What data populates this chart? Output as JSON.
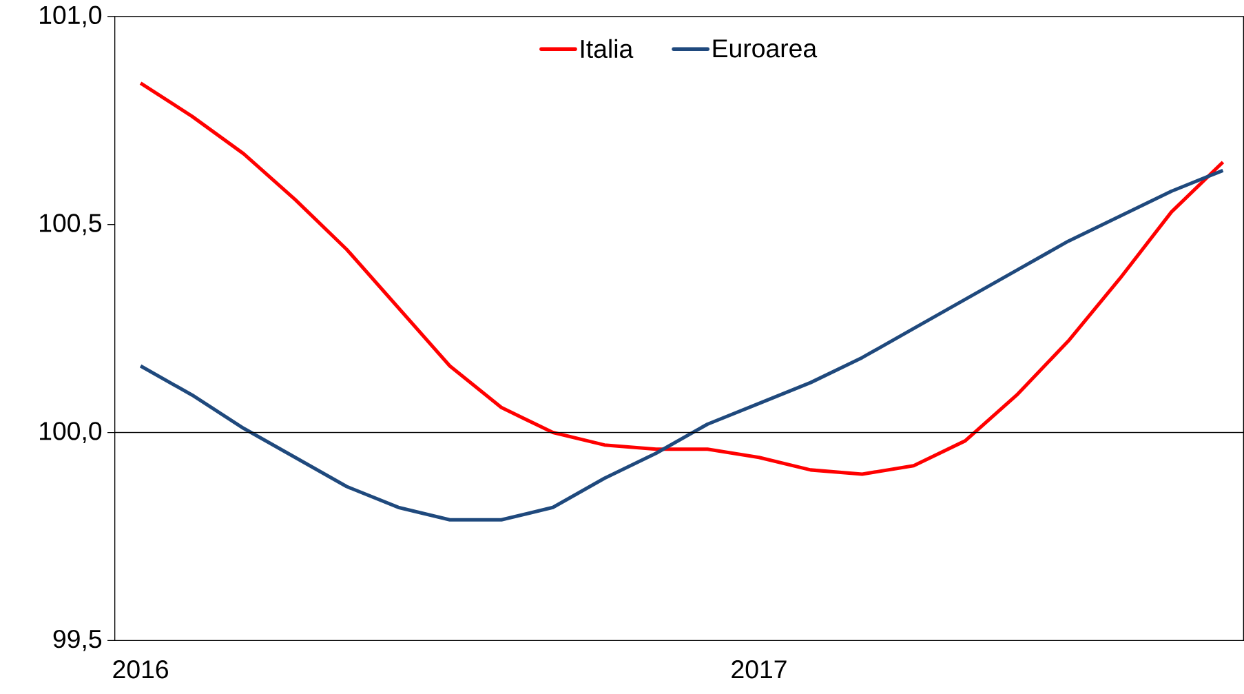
{
  "chart_data": {
    "type": "line",
    "categories": [
      "2016",
      null,
      null,
      null,
      null,
      null,
      null,
      null,
      null,
      null,
      null,
      null,
      "2017",
      null,
      null,
      null,
      null,
      null,
      null,
      null,
      null,
      null
    ],
    "series": [
      {
        "name": "Italia",
        "color": "#ff0000",
        "values": [
          100.84,
          100.76,
          100.67,
          100.56,
          100.44,
          100.3,
          100.16,
          100.06,
          100.0,
          99.97,
          99.96,
          99.96,
          99.94,
          99.91,
          99.9,
          99.92,
          99.98,
          100.09,
          100.22,
          100.37,
          100.53,
          100.65
        ]
      },
      {
        "name": "Euroarea",
        "color": "#1f497d",
        "values": [
          100.16,
          100.09,
          100.01,
          99.94,
          99.87,
          99.82,
          99.79,
          99.79,
          99.82,
          99.89,
          99.95,
          100.02,
          100.07,
          100.12,
          100.18,
          100.25,
          100.32,
          100.39,
          100.46,
          100.52,
          100.58,
          100.63
        ]
      }
    ],
    "ylim": [
      99.5,
      101.0
    ],
    "yticks": [
      {
        "value": 99.5,
        "label": "99,5"
      },
      {
        "value": 100.0,
        "label": "100,0"
      },
      {
        "value": 100.5,
        "label": "100,5"
      },
      {
        "value": 101.0,
        "label": "101,0"
      }
    ],
    "ref_lines": [
      {
        "axis": "y",
        "value": 100.0
      }
    ],
    "legend": "top",
    "marker": "none",
    "line_style": "solid"
  }
}
